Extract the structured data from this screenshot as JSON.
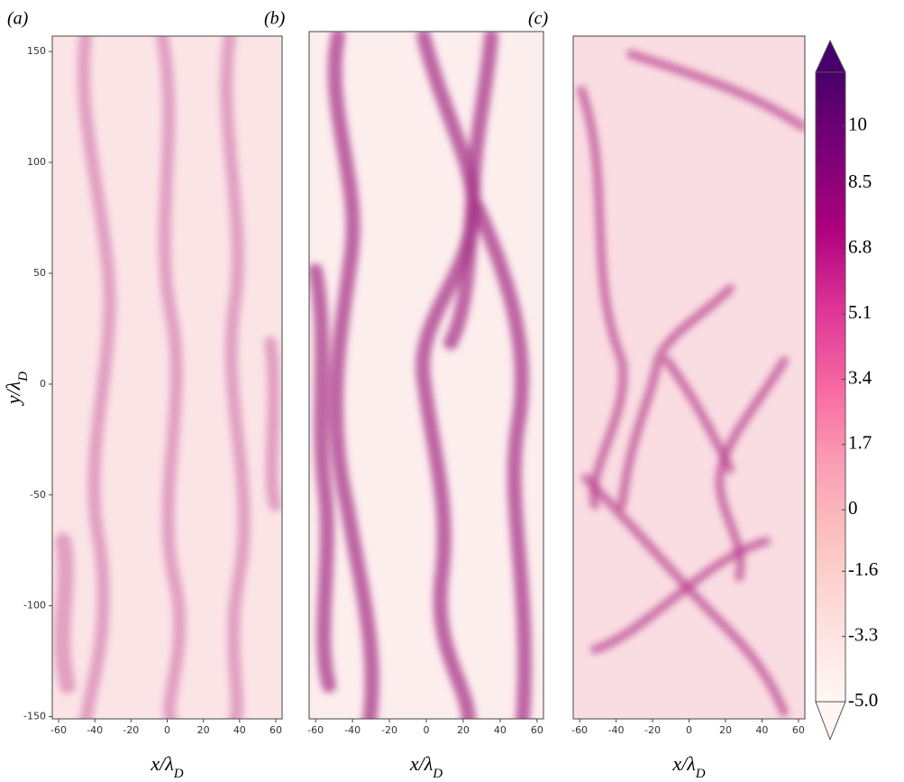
{
  "chart_data": [
    {
      "type": "heatmap",
      "panel_label": "(a)",
      "xlabel": {
        "main": "x/λ",
        "sub": "D"
      },
      "ylabel": {
        "main": "y/λ",
        "sub": "D"
      },
      "xlim": [
        -63.5,
        63.5
      ],
      "ylim": [
        -151,
        157
      ],
      "xticks": [
        -60,
        -40,
        -20,
        0,
        20,
        40,
        60
      ],
      "yticks": [
        -150,
        -100,
        -50,
        0,
        50,
        100,
        150
      ]
    },
    {
      "type": "heatmap",
      "panel_label": "(b)",
      "xlabel": {
        "main": "x/λ",
        "sub": "D"
      },
      "xlim": [
        -63.5,
        63.5
      ],
      "ylim": [
        -151,
        157
      ],
      "xticks": [
        -60,
        -40,
        -20,
        0,
        20,
        40,
        60
      ]
    },
    {
      "type": "heatmap",
      "panel_label": "(c)",
      "xlabel": {
        "main": "x/λ",
        "sub": "D"
      },
      "xlim": [
        -63.5,
        63.5
      ],
      "ylim": [
        -151,
        157
      ],
      "xticks": [
        -60,
        -40,
        -20,
        0,
        20,
        40,
        60
      ]
    }
  ],
  "colorbar": {
    "clim": [
      -5,
      11.4
    ],
    "extend": "both",
    "colors": [
      "#fff7f3",
      "#fde0dd",
      "#fcc5c0",
      "#fa9fb5",
      "#f768a1",
      "#dd3497",
      "#ae017e",
      "#7a0177",
      "#49006a"
    ],
    "ticks": [
      10,
      8.5,
      6.8,
      5.1,
      3.4,
      1.7,
      0,
      -1.6,
      -3.3,
      {
        "value": -5,
        "label": "-5.0"
      }
    ]
  }
}
